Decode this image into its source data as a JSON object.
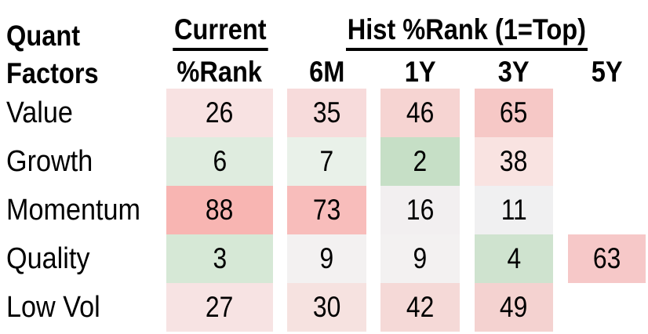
{
  "title": {
    "line1": "Quant",
    "line2": "Factors"
  },
  "header": {
    "current_group_label": "Current",
    "hist_group_label": "Hist %Rank (1=Top)",
    "value_col_label": "%Rank",
    "period_cols": [
      "6M",
      "1Y",
      "3Y",
      "5Y"
    ]
  },
  "rows": [
    {
      "label": "Value",
      "cells": [
        {
          "value": "26",
          "color": "#f8e2e2"
        },
        {
          "value": "35",
          "color": "#f7dbdb"
        },
        {
          "value": "46",
          "color": "#f6d4d2"
        },
        {
          "value": "65",
          "color": "#f6c8c6"
        },
        {
          "value": "",
          "color": ""
        }
      ]
    },
    {
      "label": "Growth",
      "cells": [
        {
          "value": "6",
          "color": "#dfecdf"
        },
        {
          "value": "7",
          "color": "#e9f1e9"
        },
        {
          "value": "2",
          "color": "#c6dfc6"
        },
        {
          "value": "38",
          "color": "#f9e3e1"
        },
        {
          "value": "",
          "color": ""
        }
      ]
    },
    {
      "label": "Momentum",
      "cells": [
        {
          "value": "88",
          "color": "#f8b5b2"
        },
        {
          "value": "73",
          "color": "#f8bdbb"
        },
        {
          "value": "16",
          "color": "#f2eff0"
        },
        {
          "value": "11",
          "color": "#f0f0f1"
        },
        {
          "value": "",
          "color": ""
        }
      ]
    },
    {
      "label": "Quality",
      "cells": [
        {
          "value": "3",
          "color": "#d6e8d6"
        },
        {
          "value": "9",
          "color": "#f3f1f1"
        },
        {
          "value": "9",
          "color": "#f3f1f1"
        },
        {
          "value": "4",
          "color": "#cfe3cf"
        },
        {
          "value": "63",
          "color": "#f6c8c8"
        }
      ]
    },
    {
      "label": "Low Vol",
      "cells": [
        {
          "value": "27",
          "color": "#f7e3e3"
        },
        {
          "value": "30",
          "color": "#f6e2e0"
        },
        {
          "value": "42",
          "color": "#f5d9d7"
        },
        {
          "value": "49",
          "color": "#f4d2d0"
        },
        {
          "value": "",
          "color": ""
        }
      ]
    }
  ],
  "chart_data": {
    "type": "heatmap",
    "title": "Quant Factors",
    "column_groups": [
      {
        "label": "Current",
        "columns": [
          "%Rank"
        ]
      },
      {
        "label": "Hist %Rank (1=Top)",
        "columns": [
          "6M",
          "1Y",
          "3Y",
          "5Y"
        ]
      }
    ],
    "columns": [
      "Current %Rank",
      "6M",
      "1Y",
      "3Y",
      "5Y"
    ],
    "rows": [
      "Value",
      "Growth",
      "Momentum",
      "Quality",
      "Low Vol"
    ],
    "values": [
      [
        26,
        35,
        46,
        65,
        null
      ],
      [
        6,
        7,
        2,
        38,
        null
      ],
      [
        88,
        73,
        16,
        11,
        null
      ],
      [
        3,
        9,
        9,
        4,
        63
      ],
      [
        27,
        30,
        42,
        49,
        null
      ]
    ],
    "scale_note": "1=Top",
    "color_scale": {
      "domain": [
        1,
        100
      ],
      "low": "#c6dfc6",
      "mid": "#f1f0f0",
      "high": "#f8b5b2"
    },
    "legend_position": "none",
    "grid": false
  }
}
